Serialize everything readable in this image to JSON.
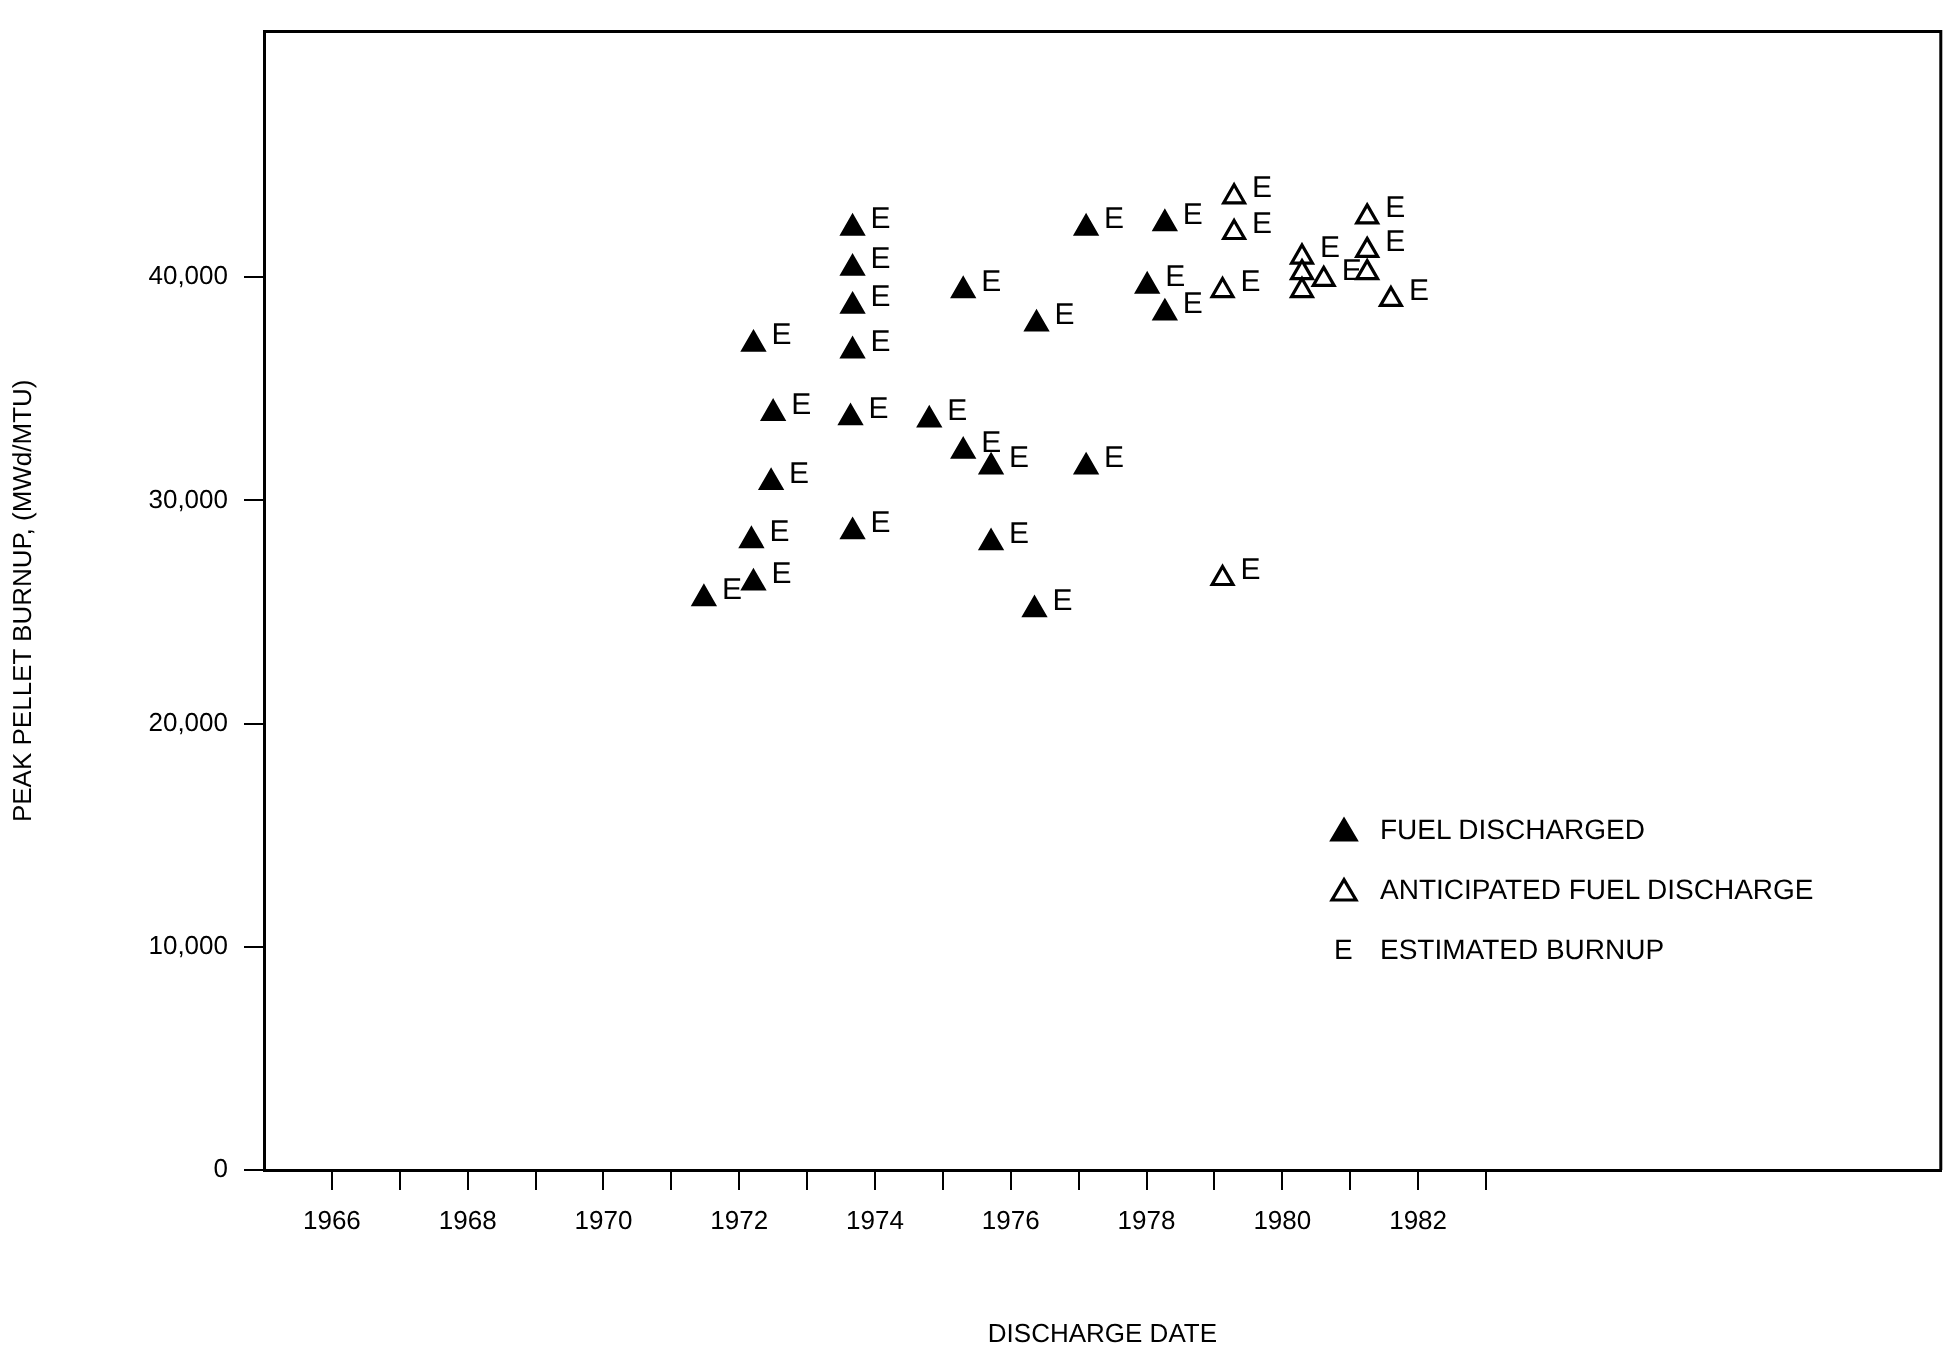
{
  "chart_data": {
    "type": "scatter",
    "xlabel": "DISCHARGE DATE",
    "ylabel": "PEAK PELLET BURNUP, (MWd/MTU)",
    "xlim": [
      1965,
      1989.7
    ],
    "ylim": [
      0,
      51000
    ],
    "xticks": [
      1966,
      {
        "value": 1967,
        "label": null
      },
      1968,
      {
        "value": 1969,
        "label": null
      },
      1970,
      {
        "value": 1971,
        "label": null
      },
      1972,
      {
        "value": 1973,
        "label": null
      },
      1974,
      {
        "value": 1975,
        "label": null
      },
      1976,
      {
        "value": 1977,
        "label": null
      },
      1978,
      {
        "value": 1979,
        "label": null
      },
      1980,
      {
        "value": 1981,
        "label": null
      },
      1982,
      {
        "value": 1983,
        "label": null
      }
    ],
    "yticks": [
      0,
      {
        "value": 10000,
        "label": "10,000"
      },
      {
        "value": 20000,
        "label": "20,000"
      },
      {
        "value": 30000,
        "label": "30,000"
      },
      {
        "value": 40000,
        "label": "40,000"
      }
    ],
    "grid": false,
    "legend": "bottom right",
    "marker": "triangle",
    "series": [
      {
        "name": "FUEL DISCHARGED",
        "color": "#000000",
        "x": [
          1971.48,
          1972.21,
          1972.18,
          1972.47,
          1972.5,
          1972.21,
          1973.67,
          1973.67,
          1973.67,
          1973.67,
          1973.64,
          1973.67,
          1974.8,
          1975.3,
          1975.3,
          1975.71,
          1975.71,
          1976.38,
          1976.35,
          1977.11,
          1977.11,
          1978.27,
          1978.01,
          1978.27
        ],
        "values": [
          25600,
          26300,
          28200,
          30800,
          33900,
          37000,
          42200,
          40400,
          38700,
          36700,
          33700,
          28600,
          33600,
          39400,
          32200,
          31500,
          28100,
          37900,
          25100,
          42200,
          31500,
          42400,
          39600,
          38400
        ],
        "value_labels": [
          "E",
          "E",
          "E",
          "E",
          "E",
          "E",
          "E",
          "E",
          "E",
          "E",
          "E",
          "E",
          "E",
          "E",
          "E",
          "E",
          "E",
          "E",
          "E",
          "E",
          "E",
          "E",
          "E",
          "E"
        ]
      },
      {
        "name": "ANTICIPATED FUEL DISCHARGE",
        "color": "#000000",
        "x": [
          1979.29,
          1979.29,
          1979.12,
          1979.12,
          1980.29,
          1980.29,
          1980.29,
          1980.61,
          1981.25,
          1981.25,
          1981.25,
          1981.6
        ],
        "values": [
          43600,
          42000,
          39400,
          26500,
          40900,
          40200,
          39400,
          39900,
          42700,
          41200,
          40200,
          39000
        ],
        "value_labels": [
          "E",
          "E",
          "E",
          "E",
          "E",
          null,
          null,
          "E",
          "E",
          "E",
          null,
          "E"
        ]
      }
    ],
    "annotations": [
      "E ESTIMATED BURNUP"
    ]
  }
}
